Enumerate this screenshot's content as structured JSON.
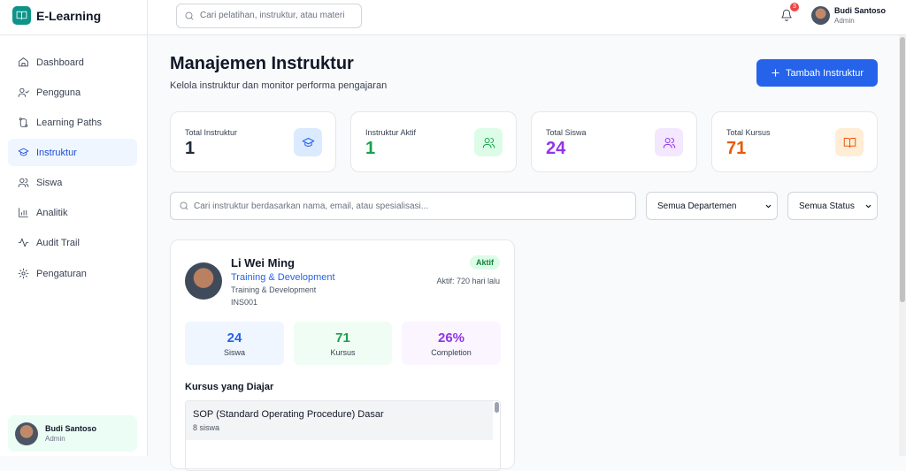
{
  "header": {
    "logo": "E-Learning",
    "search_placeholder": "Cari pelatihan, instruktur, atau materi",
    "notification_count": "3",
    "user_name": "Budi Santoso",
    "user_role": "Admin"
  },
  "sidebar": {
    "items": [
      "Dashboard",
      "Pengguna",
      "Learning Paths",
      "Instruktur",
      "Siswa",
      "Analitik",
      "Audit Trail",
      "Pengaturan"
    ],
    "user_name": "Budi Santoso",
    "user_role": "Admin"
  },
  "page": {
    "title": "Manajemen Instruktur",
    "subtitle": "Kelola instruktur dan monitor performa pengajaran",
    "add_button": "Tambah Instruktur"
  },
  "stats": [
    {
      "label": "Total Instruktur",
      "value": "1"
    },
    {
      "label": "Instruktur Aktif",
      "value": "1"
    },
    {
      "label": "Total Siswa",
      "value": "24"
    },
    {
      "label": "Total Kursus",
      "value": "71"
    }
  ],
  "filters": {
    "search_placeholder": "Cari instruktur berdasarkan nama, email, atau spesialisasi...",
    "department": "Semua Departemen",
    "status": "Semua Status"
  },
  "instructor": {
    "name": "Li Wei Ming",
    "specialization": "Training & Development",
    "department": "Training & Development",
    "id": "INS001",
    "status": "Aktif",
    "last_active": "Aktif: 720 hari lalu",
    "metrics": [
      {
        "value": "24",
        "label": "Siswa"
      },
      {
        "value": "71",
        "label": "Kursus"
      },
      {
        "value": "26%",
        "label": "Completion"
      }
    ],
    "courses_title": "Kursus yang Diajar",
    "courses": [
      {
        "title": "SOP (Standard Operating Procedure) Dasar",
        "students": "8 siswa"
      }
    ]
  }
}
